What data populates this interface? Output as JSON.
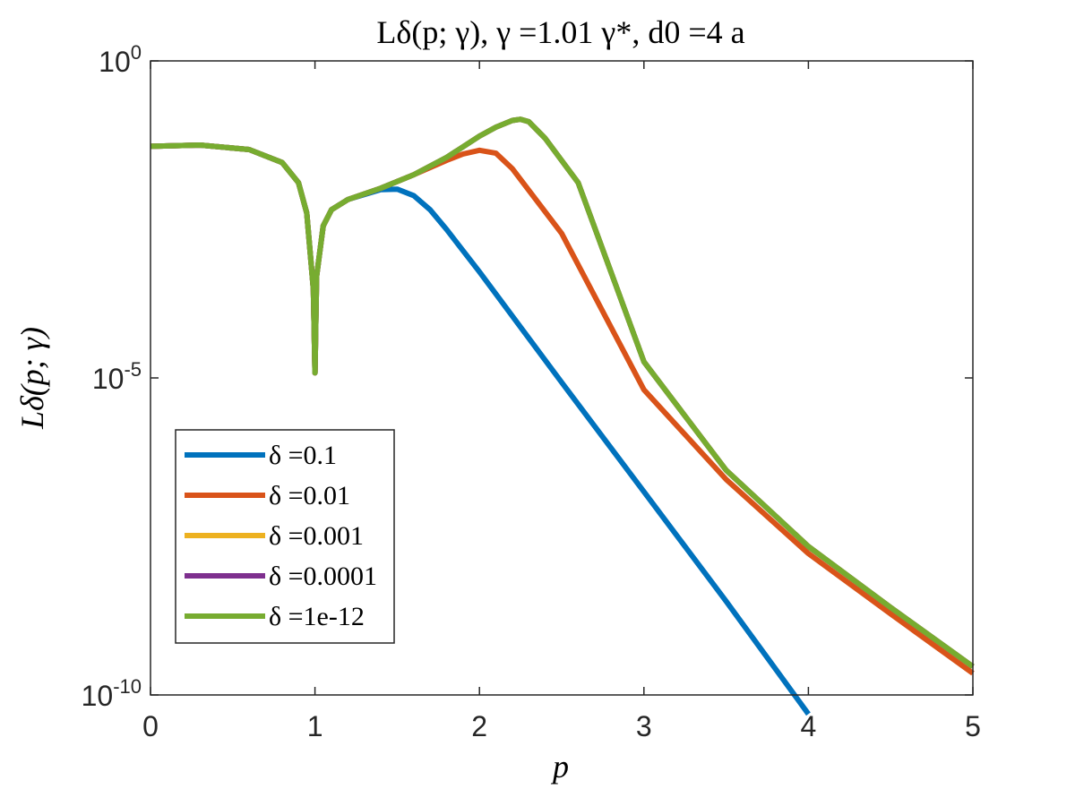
{
  "chart_data": {
    "type": "line",
    "title": "Lδ(p; γ), γ =1.01 γ*, d0 =4 a",
    "xlabel": "p",
    "ylabel": "Lδ(p; γ)",
    "xlim": [
      0,
      5
    ],
    "ylim": [
      1e-10,
      1
    ],
    "yscale": "log",
    "grid": false,
    "legend_position": "lower-left",
    "x_ticks": [
      "0",
      "1",
      "2",
      "3",
      "4",
      "5"
    ],
    "y_ticks": [
      {
        "value": 1,
        "base": "10",
        "exp": "0"
      },
      {
        "value": 1e-05,
        "base": "10",
        "exp": "-5"
      },
      {
        "value": 1e-10,
        "base": "10",
        "exp": "-10"
      }
    ],
    "series": [
      {
        "name": "δ =0.1",
        "color": "#0072BD",
        "x": [
          0,
          0.3,
          0.6,
          0.8,
          0.9,
          0.95,
          0.99,
          1.0,
          1.01,
          1.05,
          1.1,
          1.2,
          1.4,
          1.5,
          1.6,
          1.7,
          1.8,
          2.0,
          2.5,
          3.0,
          3.5,
          4.0,
          4.5,
          5.0
        ],
        "y": [
          0.045,
          0.047,
          0.04,
          0.025,
          0.012,
          0.004,
          0.00025,
          1.2e-05,
          0.0004,
          0.0025,
          0.0045,
          0.0065,
          0.0093,
          0.0095,
          0.0075,
          0.0045,
          0.0022,
          0.00047,
          8.5e-06,
          1.6e-07,
          3e-09,
          5e-11,
          0,
          0
        ]
      },
      {
        "name": "δ =0.01",
        "color": "#D95319",
        "x": [
          0,
          0.3,
          0.6,
          0.8,
          0.9,
          0.95,
          0.99,
          1.0,
          1.01,
          1.05,
          1.1,
          1.2,
          1.4,
          1.6,
          1.8,
          1.9,
          2.0,
          2.1,
          2.2,
          2.5,
          3.0,
          3.5,
          4.0,
          4.5,
          5.0
        ],
        "y": [
          0.045,
          0.047,
          0.04,
          0.025,
          0.012,
          0.004,
          0.00025,
          1.2e-05,
          0.0004,
          0.0025,
          0.0045,
          0.0065,
          0.0098,
          0.016,
          0.027,
          0.034,
          0.039,
          0.035,
          0.02,
          0.0019,
          6.5e-06,
          2.5e-07,
          1.7e-08,
          1.9e-09,
          2.2e-10
        ]
      },
      {
        "name": "δ =0.001",
        "color": "#EDB120",
        "x": [
          0,
          0.3,
          0.6,
          0.8,
          0.9,
          0.95,
          0.99,
          1.0,
          1.01,
          1.05,
          1.1,
          1.2,
          1.4,
          1.6,
          1.8,
          2.0,
          2.1,
          2.2,
          2.25,
          2.3,
          2.4,
          2.6,
          3.0,
          3.5,
          4.0,
          4.5,
          5.0
        ],
        "y": [
          0.045,
          0.047,
          0.04,
          0.025,
          0.012,
          0.004,
          0.00025,
          1.2e-05,
          0.0004,
          0.0025,
          0.0045,
          0.0065,
          0.0098,
          0.016,
          0.03,
          0.065,
          0.09,
          0.115,
          0.12,
          0.11,
          0.06,
          0.012,
          1.8e-05,
          3.5e-07,
          2.2e-08,
          2.4e-09,
          2.8e-10
        ]
      },
      {
        "name": "δ =0.0001",
        "color": "#7E2F8E",
        "x": [
          0,
          0.3,
          0.6,
          0.8,
          0.9,
          0.95,
          0.99,
          1.0,
          1.01,
          1.05,
          1.1,
          1.2,
          1.4,
          1.6,
          1.8,
          2.0,
          2.1,
          2.2,
          2.25,
          2.3,
          2.4,
          2.6,
          3.0,
          3.5,
          4.0,
          4.5,
          5.0
        ],
        "y": [
          0.045,
          0.047,
          0.04,
          0.025,
          0.012,
          0.004,
          0.00025,
          1.2e-05,
          0.0004,
          0.0025,
          0.0045,
          0.0065,
          0.0098,
          0.016,
          0.03,
          0.065,
          0.09,
          0.115,
          0.12,
          0.11,
          0.06,
          0.012,
          1.8e-05,
          3.5e-07,
          2.2e-08,
          2.4e-09,
          2.8e-10
        ]
      },
      {
        "name": "δ =1e-12",
        "color": "#77AC30",
        "x": [
          0,
          0.3,
          0.6,
          0.8,
          0.9,
          0.95,
          0.99,
          1.0,
          1.01,
          1.05,
          1.1,
          1.2,
          1.4,
          1.6,
          1.8,
          2.0,
          2.1,
          2.2,
          2.25,
          2.3,
          2.4,
          2.6,
          3.0,
          3.5,
          4.0,
          4.5,
          5.0
        ],
        "y": [
          0.045,
          0.047,
          0.04,
          0.025,
          0.012,
          0.004,
          0.00025,
          1.2e-05,
          0.0004,
          0.0025,
          0.0045,
          0.0065,
          0.0098,
          0.016,
          0.03,
          0.065,
          0.09,
          0.115,
          0.12,
          0.11,
          0.06,
          0.012,
          1.8e-05,
          3.5e-07,
          2.2e-08,
          2.4e-09,
          2.8e-10
        ]
      }
    ]
  }
}
